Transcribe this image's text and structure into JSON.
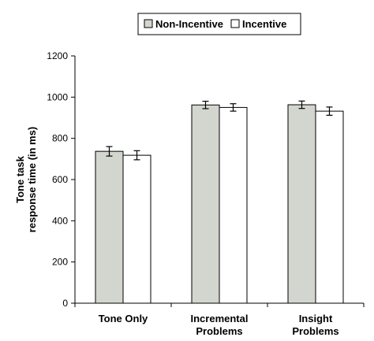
{
  "chart_data": {
    "type": "bar",
    "categories": [
      [
        "Tone Only"
      ],
      [
        "Incremental",
        "Problems"
      ],
      [
        "Insight",
        "Problems"
      ]
    ],
    "series": [
      {
        "name": "Non-Incentive",
        "values": [
          737,
          962,
          963
        ],
        "errors": [
          23,
          18,
          18
        ],
        "color": "#d3d6cf"
      },
      {
        "name": "Incentive",
        "values": [
          718,
          950,
          932
        ],
        "errors": [
          22,
          18,
          20
        ],
        "color": "#ffffff"
      }
    ],
    "ylabel": [
      "Tone task",
      "response time (in ms)"
    ],
    "ylim": [
      0,
      1200
    ],
    "yticks": [
      0,
      200,
      400,
      600,
      800,
      1000,
      1200
    ],
    "legend_position": "top-center",
    "grid": false
  }
}
